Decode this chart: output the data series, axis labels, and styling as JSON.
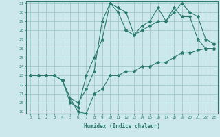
{
  "title": "",
  "xlabel": "Humidex (Indice chaleur)",
  "ylabel": "",
  "background_color": "#cce8ec",
  "grid_color": "#a0c8cc",
  "line_color": "#2a7a6e",
  "x_min": 0,
  "x_max": 23,
  "y_min": 19,
  "y_max": 31,
  "series": [
    {
      "x": [
        0,
        1,
        2,
        3,
        4,
        5,
        6,
        7,
        8,
        9,
        10,
        11,
        12,
        13,
        14,
        15,
        16,
        17,
        18,
        19,
        20,
        21,
        22,
        23
      ],
      "y": [
        23,
        23,
        23,
        23,
        22.5,
        20.5,
        19,
        18.8,
        21,
        21.5,
        23,
        23,
        23.5,
        23.5,
        24,
        24,
        24.5,
        24.5,
        25,
        25.5,
        25.5,
        25.8,
        26,
        26
      ]
    },
    {
      "x": [
        0,
        1,
        2,
        3,
        4,
        5,
        6,
        7,
        8,
        9,
        10,
        11,
        12,
        13,
        14,
        15,
        16,
        17,
        18,
        19,
        20,
        21,
        22,
        23
      ],
      "y": [
        23,
        23,
        23,
        23,
        22.5,
        20,
        19.5,
        23,
        25,
        27,
        31,
        30.5,
        30,
        27.5,
        28,
        28.5,
        29,
        29,
        30.5,
        29.5,
        29.5,
        27,
        26,
        26
      ]
    },
    {
      "x": [
        0,
        1,
        2,
        3,
        4,
        5,
        6,
        7,
        8,
        9,
        10,
        11,
        12,
        13,
        14,
        15,
        16,
        17,
        18,
        19,
        20,
        21,
        22,
        23
      ],
      "y": [
        23,
        23,
        23,
        23,
        22.5,
        20.5,
        20,
        21.5,
        23.5,
        29,
        31,
        30,
        28,
        27.5,
        28.5,
        29,
        30.5,
        29,
        30,
        31,
        30,
        29.5,
        27,
        26.5
      ]
    }
  ]
}
